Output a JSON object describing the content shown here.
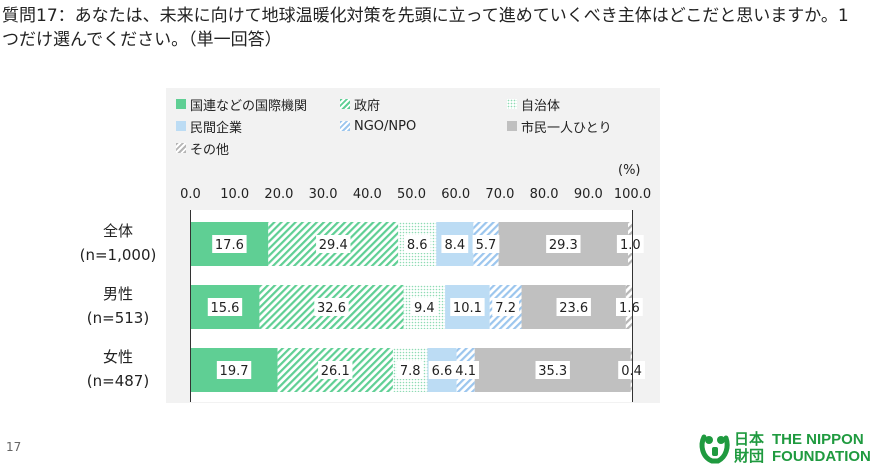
{
  "question": {
    "text": "質問17：あなたは、未来に向けて地球温暖化対策を先頭に立って進めていくべき主体はどこだと思いますか。1つだけ選んでください。（単一回答）"
  },
  "legend": [
    {
      "label": "国連などの国際機関",
      "color": "#5fcf94",
      "pattern": "solid"
    },
    {
      "label": "政府",
      "color": "#5fcf94",
      "pattern": "hatch"
    },
    {
      "label": "自治体",
      "color": "#8fdbb4",
      "pattern": "dots"
    },
    {
      "label": "民間企業",
      "color": "#bcdcf4",
      "pattern": "solid"
    },
    {
      "label": "NGO/NPO",
      "color": "#9cc6ee",
      "pattern": "hatch"
    },
    {
      "label": "市民一人ひとり",
      "color": "#c0c0c0",
      "pattern": "solid"
    },
    {
      "label": "その他",
      "color": "#b5b5b5",
      "pattern": "hatch"
    }
  ],
  "chart_data": {
    "type": "bar",
    "orientation": "horizontal",
    "stacked": true,
    "unit_label": "(%)",
    "x_ticks": [
      "0.0",
      "10.0",
      "20.0",
      "30.0",
      "40.0",
      "50.0",
      "60.0",
      "70.0",
      "80.0",
      "90.0",
      "100.0"
    ],
    "xlim": [
      0,
      100
    ],
    "categories": [
      [
        "全体",
        "(n=1,000)"
      ],
      [
        "男性",
        "(n=513)"
      ],
      [
        "女性",
        "(n=487)"
      ]
    ],
    "series": [
      {
        "name": "国連などの国際機関",
        "values": [
          17.6,
          15.6,
          19.7
        ]
      },
      {
        "name": "政府",
        "values": [
          29.4,
          32.6,
          26.1
        ]
      },
      {
        "name": "自治体",
        "values": [
          8.6,
          9.4,
          7.8
        ]
      },
      {
        "name": "民間企業",
        "values": [
          8.4,
          10.1,
          6.6
        ]
      },
      {
        "name": "NGO/NPO",
        "values": [
          5.7,
          7.2,
          4.1
        ]
      },
      {
        "name": "市民一人ひとり",
        "values": [
          29.3,
          23.6,
          35.3
        ]
      },
      {
        "name": "その他",
        "values": [
          1.0,
          1.6,
          0.4
        ]
      }
    ],
    "legend_position": "top",
    "grid": false
  },
  "footer": {
    "page_number": "17",
    "logo_kanji_top": "日本",
    "logo_kanji_bottom": "財団",
    "logo_line1": "THE NIPPON",
    "logo_line2": "FOUNDATION"
  }
}
